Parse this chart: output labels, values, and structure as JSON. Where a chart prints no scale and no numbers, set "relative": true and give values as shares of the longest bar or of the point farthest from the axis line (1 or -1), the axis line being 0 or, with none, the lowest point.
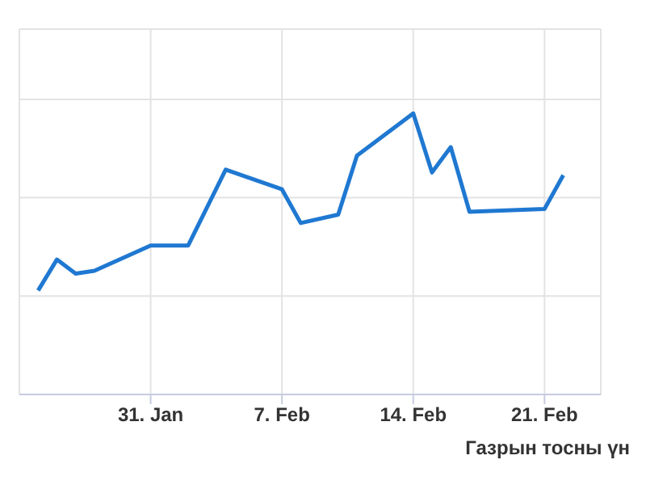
{
  "chart_data": {
    "type": "line",
    "relative": true,
    "x": [
      "--01-25",
      "--01-26",
      "--01-27",
      "--01-28",
      "--01-31",
      "--02-02",
      "--02-04",
      "--02-07",
      "--02-08",
      "--02-10",
      "--02-11",
      "--02-14",
      "--02-15",
      "--02-16",
      "--02-17",
      "--02-21",
      "--02-22"
    ],
    "series": [
      {
        "color": "#1f78d1",
        "values": [
          0.37,
          0.48,
          0.43,
          0.44,
          0.53,
          0.53,
          0.8,
          0.73,
          0.61,
          0.64,
          0.85,
          1,
          0.79,
          0.88,
          0.65,
          0.66,
          0.78
        ]
      }
    ],
    "xlim": [
      "--01-24",
      "--02-24"
    ],
    "xticks": [
      {
        "value": "--01-31",
        "label": "31. Jan"
      },
      {
        "value": "--02-07",
        "label": "7. Feb"
      },
      {
        "value": "--02-14",
        "label": "14. Feb"
      },
      {
        "value": "--02-21",
        "label": "21. Feb"
      }
    ],
    "grid": true,
    "marker": "none",
    "line_style": "solid",
    "annotations": [
      "Газрын тосны үн"
    ]
  }
}
